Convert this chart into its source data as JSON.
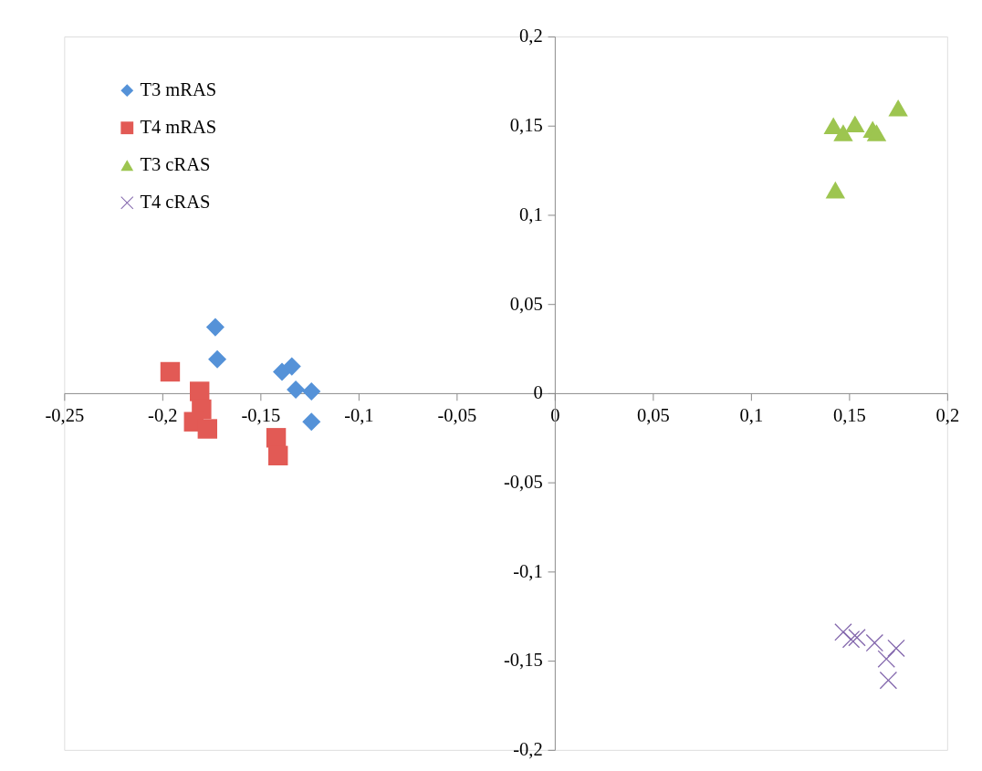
{
  "chart_data": {
    "type": "scatter",
    "xlim": [
      -0.25,
      0.2
    ],
    "ylim": [
      -0.2,
      0.2
    ],
    "xticks": [
      {
        "value": -0.25,
        "label": "-0,25"
      },
      {
        "value": -0.2,
        "label": "-0,2"
      },
      {
        "value": -0.15,
        "label": "-0,15"
      },
      {
        "value": -0.1,
        "label": "-0,1"
      },
      {
        "value": -0.05,
        "label": "-0,05"
      },
      0,
      {
        "value": 0.05,
        "label": "0,05"
      },
      {
        "value": 0.1,
        "label": "0,1"
      },
      {
        "value": 0.15,
        "label": "0,15"
      },
      {
        "value": 0.2,
        "label": "0,2"
      }
    ],
    "yticks": [
      {
        "value": -0.2,
        "label": "-0,2"
      },
      {
        "value": -0.15,
        "label": "-0,15"
      },
      {
        "value": -0.1,
        "label": "-0,1"
      },
      {
        "value": -0.05,
        "label": "-0,05"
      },
      0,
      {
        "value": 0.05,
        "label": "0,05"
      },
      {
        "value": 0.1,
        "label": "0,1"
      },
      {
        "value": 0.15,
        "label": "0,15"
      },
      {
        "value": 0.2,
        "label": "0,2"
      }
    ],
    "grid": false,
    "legend": "top left",
    "series": [
      {
        "name": "T3 mRAS",
        "color": "#5592d8",
        "marker": "diamond",
        "x": [
          -0.173,
          -0.172,
          -0.139,
          -0.134,
          -0.132,
          -0.124,
          -0.124
        ],
        "values": [
          0.037,
          0.019,
          0.012,
          0.015,
          0.002,
          0.001,
          -0.016
        ]
      },
      {
        "name": "T4 mRAS",
        "color": "#e25a55",
        "marker": "square",
        "x": [
          -0.196,
          -0.181,
          -0.18,
          -0.184,
          -0.177,
          -0.142,
          -0.141
        ],
        "values": [
          0.012,
          0.001,
          -0.009,
          -0.016,
          -0.02,
          -0.025,
          -0.035
        ]
      },
      {
        "name": "T3 cRAS",
        "color": "#9dc550",
        "marker": "triangle",
        "x": [
          0.175,
          0.142,
          0.147,
          0.153,
          0.162,
          0.164,
          0.143
        ],
        "values": [
          0.16,
          0.15,
          0.146,
          0.151,
          0.148,
          0.146,
          0.114
        ]
      },
      {
        "name": "T4 cRAS",
        "color": "#8468ad",
        "marker": "cross",
        "x": [
          0.147,
          0.151,
          0.154,
          0.163,
          0.174,
          0.169,
          0.17
        ],
        "values": [
          -0.134,
          -0.138,
          -0.137,
          -0.14,
          -0.143,
          -0.149,
          -0.161
        ]
      }
    ]
  }
}
